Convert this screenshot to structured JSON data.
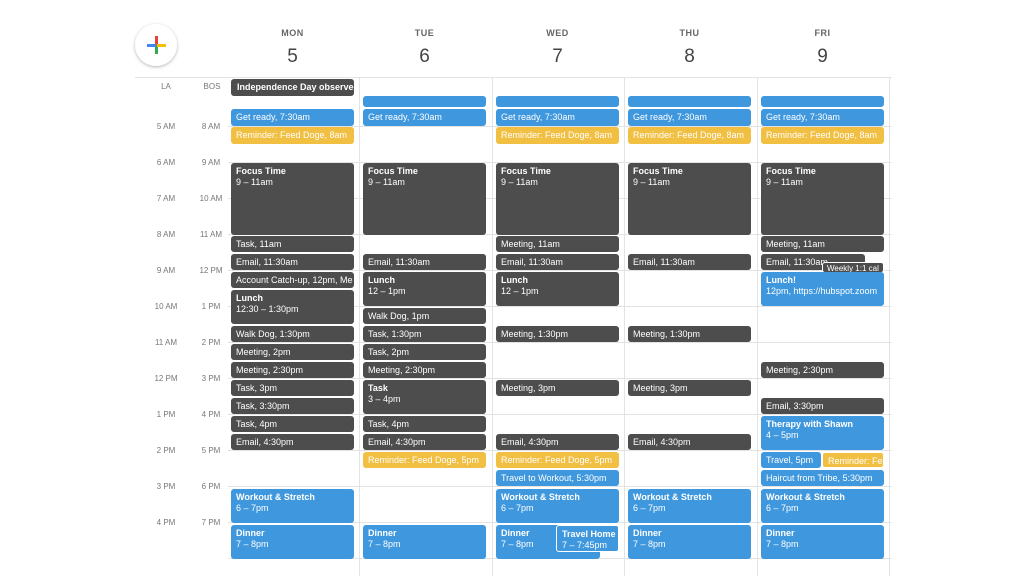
{
  "timezones": [
    "LA",
    "BOS"
  ],
  "la_hours": [
    "5 AM",
    "6 AM",
    "7 AM",
    "8 AM",
    "9 AM",
    "10 AM",
    "11 AM",
    "12 PM",
    "1 PM",
    "2 PM",
    "3 PM",
    "4 PM"
  ],
  "bos_hours": [
    "8 AM",
    "9 AM",
    "10 AM",
    "11 AM",
    "12 PM",
    "1 PM",
    "2 PM",
    "3 PM",
    "4 PM",
    "5 PM",
    "6 PM",
    "7 PM"
  ],
  "days": [
    {
      "name": "MON",
      "date": 5,
      "all_day": [
        {
          "title": "Independence Day observed",
          "color": "#4d4d4d"
        }
      ],
      "events": [
        {
          "title": "Get ready, 7:30am",
          "color": "#3f97dd"
        },
        {
          "title": "Reminder: Feed Doge, 8am",
          "color": "#f1bf42"
        },
        {
          "title": "Focus Time",
          "time": "9 – 11am",
          "color": "#4d4d4d"
        },
        {
          "title": "Task, 11am",
          "color": "#4d4d4d"
        },
        {
          "title": "Email, 11:30am",
          "color": "#4d4d4d"
        },
        {
          "title": "Account Catch-up, 12pm, Me",
          "color": "#4d4d4d"
        },
        {
          "title": "Lunch",
          "time": "12:30 – 1:30pm",
          "color": "#4d4d4d"
        },
        {
          "title": "Walk Dog, 1:30pm",
          "color": "#4d4d4d"
        },
        {
          "title": "Meeting, 2pm",
          "color": "#4d4d4d"
        },
        {
          "title": "Meeting, 2:30pm",
          "color": "#4d4d4d"
        },
        {
          "title": "Task, 3pm",
          "color": "#4d4d4d"
        },
        {
          "title": "Task, 3:30pm",
          "color": "#4d4d4d"
        },
        {
          "title": "Task, 4pm",
          "color": "#4d4d4d"
        },
        {
          "title": "Email, 4:30pm",
          "color": "#4d4d4d"
        },
        {
          "title": "Workout & Stretch",
          "time": "6 – 7pm",
          "color": "#3f97dd"
        },
        {
          "title": "Dinner",
          "time": "7 – 8pm",
          "color": "#3f97dd"
        }
      ]
    },
    {
      "name": "TUE",
      "date": 6,
      "all_day": [],
      "events": [
        {
          "title": "Get ready, 7:30am",
          "color": "#3f97dd"
        },
        {
          "title": "Focus Time",
          "time": "9 – 11am",
          "color": "#4d4d4d"
        },
        {
          "title": "Email, 11:30am",
          "color": "#4d4d4d"
        },
        {
          "title": "Lunch",
          "time": "12 – 1pm",
          "color": "#4d4d4d"
        },
        {
          "title": "Walk Dog, 1pm",
          "color": "#4d4d4d"
        },
        {
          "title": "Task, 1:30pm",
          "color": "#4d4d4d"
        },
        {
          "title": "Task, 2pm",
          "color": "#4d4d4d"
        },
        {
          "title": "Meeting, 2:30pm",
          "color": "#4d4d4d"
        },
        {
          "title": "Task",
          "time": "3 – 4pm",
          "color": "#4d4d4d"
        },
        {
          "title": "Task, 4pm",
          "color": "#4d4d4d"
        },
        {
          "title": "Email, 4:30pm",
          "color": "#4d4d4d"
        },
        {
          "title": "Reminder: Feed Doge, 5pm",
          "color": "#f1bf42"
        },
        {
          "title": "Dinner",
          "time": "7 – 8pm",
          "color": "#3f97dd"
        }
      ]
    },
    {
      "name": "WED",
      "date": 7,
      "all_day": [],
      "events": [
        {
          "title": "Get ready, 7:30am",
          "color": "#3f97dd"
        },
        {
          "title": "Reminder: Feed Doge, 8am",
          "color": "#f1bf42"
        },
        {
          "title": "Focus Time",
          "time": "9 – 11am",
          "color": "#4d4d4d"
        },
        {
          "title": "Meeting, 11am",
          "color": "#4d4d4d"
        },
        {
          "title": "Email, 11:30am",
          "color": "#4d4d4d"
        },
        {
          "title": "Lunch",
          "time": "12 – 1pm",
          "color": "#4d4d4d"
        },
        {
          "title": "Meeting, 1:30pm",
          "color": "#4d4d4d"
        },
        {
          "title": "Meeting, 3pm",
          "color": "#4d4d4d"
        },
        {
          "title": "Email, 4:30pm",
          "color": "#4d4d4d"
        },
        {
          "title": "Reminder: Feed Doge, 5pm",
          "color": "#f1bf42"
        },
        {
          "title": "Travel to Workout, 5:30pm",
          "color": "#3f97dd"
        },
        {
          "title": "Workout & Stretch",
          "time": "6 – 7pm",
          "color": "#3f97dd"
        },
        {
          "title": "Dinner",
          "time": "7 – 8pm",
          "color": "#3f97dd"
        },
        {
          "title": "Travel Home",
          "time": "7 – 7:45pm",
          "color": "#3f97dd"
        }
      ]
    },
    {
      "name": "THU",
      "date": 8,
      "all_day": [],
      "events": [
        {
          "title": "Get ready, 7:30am",
          "color": "#3f97dd"
        },
        {
          "title": "Reminder: Feed Doge, 8am",
          "color": "#f1bf42"
        },
        {
          "title": "Focus Time",
          "time": "9 – 11am",
          "color": "#4d4d4d"
        },
        {
          "title": "Email, 11:30am",
          "color": "#4d4d4d"
        },
        {
          "title": "Meeting, 1:30pm",
          "color": "#4d4d4d"
        },
        {
          "title": "Meeting, 3pm",
          "color": "#4d4d4d"
        },
        {
          "title": "Email, 4:30pm",
          "color": "#4d4d4d"
        },
        {
          "title": "Workout & Stretch",
          "time": "6 – 7pm",
          "color": "#3f97dd"
        },
        {
          "title": "Dinner",
          "time": "7 – 8pm",
          "color": "#3f97dd"
        }
      ]
    },
    {
      "name": "FRI",
      "date": 9,
      "all_day": [],
      "events": [
        {
          "title": "Get ready, 7:30am",
          "color": "#3f97dd"
        },
        {
          "title": "Reminder: Feed Doge, 8am",
          "color": "#f1bf42"
        },
        {
          "title": "Focus Time",
          "time": "9 – 11am",
          "color": "#4d4d4d"
        },
        {
          "title": "Meeting, 11am",
          "color": "#4d4d4d"
        },
        {
          "title": "Email, 11:30am",
          "color": "#4d4d4d"
        },
        {
          "title": "Weekly 1:1 cal",
          "color": "#4d4d4d"
        },
        {
          "title": "Lunch!",
          "time": "12pm, https://hubspot.zoom",
          "color": "#3f97dd"
        },
        {
          "title": "Meeting, 2:30pm",
          "color": "#4d4d4d"
        },
        {
          "title": "Email, 3:30pm",
          "color": "#4d4d4d"
        },
        {
          "title": "Therapy with Shawn",
          "time": "4 – 5pm",
          "color": "#3f97dd"
        },
        {
          "title": "Travel, 5pm",
          "color": "#3f97dd"
        },
        {
          "title": "Reminder: Fe",
          "color": "#f1bf42"
        },
        {
          "title": "Haircut from Tribe, 5:30pm",
          "color": "#3f97dd"
        },
        {
          "title": "Workout & Stretch",
          "time": "6 – 7pm",
          "color": "#3f97dd"
        },
        {
          "title": "Dinner",
          "time": "7 – 8pm",
          "color": "#3f97dd"
        }
      ]
    }
  ]
}
